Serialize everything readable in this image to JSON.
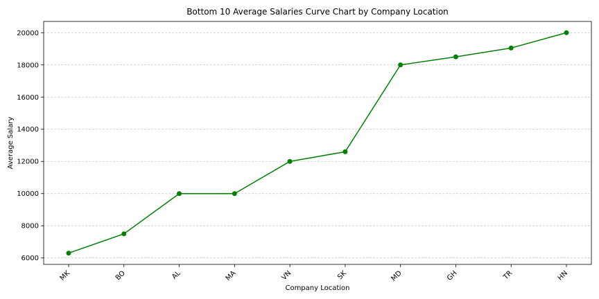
{
  "chart_data": {
    "type": "line",
    "title": "Bottom 10 Average Salaries Curve Chart by Company Location",
    "xlabel": "Company Location",
    "ylabel": "Average Salary",
    "categories": [
      "MK",
      "BO",
      "AL",
      "MA",
      "VN",
      "SK",
      "MD",
      "GH",
      "TR",
      "HN"
    ],
    "series": [
      {
        "values": [
          6300,
          7500,
          10000,
          10000,
          12000,
          12600,
          18000,
          18500,
          19050,
          20000
        ]
      }
    ],
    "ylim": [
      5600,
      20700
    ],
    "yticks": [
      6000,
      8000,
      10000,
      12000,
      14000,
      16000,
      18000,
      20000
    ],
    "grid": {
      "y": true,
      "style": "dashed"
    },
    "colors": {
      "line": "#008000",
      "grid": "#c8c8c8",
      "axis": "#000000"
    }
  }
}
